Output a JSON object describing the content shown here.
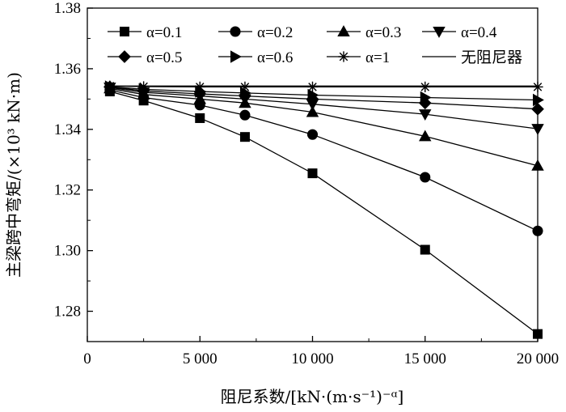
{
  "chart_data": {
    "type": "line",
    "xlabel": "阻尼系数/[kN·(m·s⁻¹)⁻ᵅ]",
    "ylabel": "主梁跨中弯矩/(×10³ kN·m)",
    "xlim": [
      0,
      20000
    ],
    "ylim": [
      1.27,
      1.38
    ],
    "xticks": [
      0,
      5000,
      10000,
      15000,
      20000
    ],
    "xtick_labels": [
      "0",
      "5 000",
      "10 000",
      "15 000",
      "20 000"
    ],
    "yticks": [
      1.28,
      1.3,
      1.32,
      1.34,
      1.36,
      1.38
    ],
    "ytick_labels": [
      "1.28",
      "1.30",
      "1.32",
      "1.34",
      "1.36",
      "1.38"
    ],
    "grid": false,
    "legend_position": "top",
    "x": [
      1000,
      2500,
      5000,
      7000,
      10000,
      15000,
      20000
    ],
    "series": [
      {
        "name": "α=0.1",
        "marker": "square",
        "values": [
          1.3525,
          1.3495,
          1.3437,
          1.3375,
          1.3255,
          1.3003,
          1.2725
        ]
      },
      {
        "name": "α=0.2",
        "marker": "circle",
        "values": [
          1.353,
          1.3505,
          1.348,
          1.3447,
          1.3383,
          1.3242,
          1.3065
        ]
      },
      {
        "name": "α=0.3",
        "marker": "triangle-up",
        "values": [
          1.3535,
          1.3515,
          1.35,
          1.3487,
          1.3457,
          1.3377,
          1.328
        ]
      },
      {
        "name": "α=0.4",
        "marker": "triangle-down",
        "values": [
          1.3538,
          1.3522,
          1.351,
          1.35,
          1.3483,
          1.345,
          1.3402
        ]
      },
      {
        "name": "α=0.5",
        "marker": "diamond",
        "values": [
          1.354,
          1.3527,
          1.3517,
          1.351,
          1.35,
          1.3487,
          1.3467
        ]
      },
      {
        "name": "α=0.6",
        "marker": "triangle-right",
        "values": [
          1.3541,
          1.3532,
          1.3525,
          1.352,
          1.3513,
          1.3505,
          1.3497
        ]
      },
      {
        "name": "α=1",
        "marker": "asterisk",
        "values": [
          1.3543,
          1.3541,
          1.354,
          1.354,
          1.354,
          1.354,
          1.354
        ]
      },
      {
        "name": "无阻尼器",
        "marker": "none",
        "values": [
          1.3543,
          1.3543,
          1.3543,
          1.3543,
          1.3543,
          1.3543,
          1.3543
        ]
      }
    ]
  }
}
